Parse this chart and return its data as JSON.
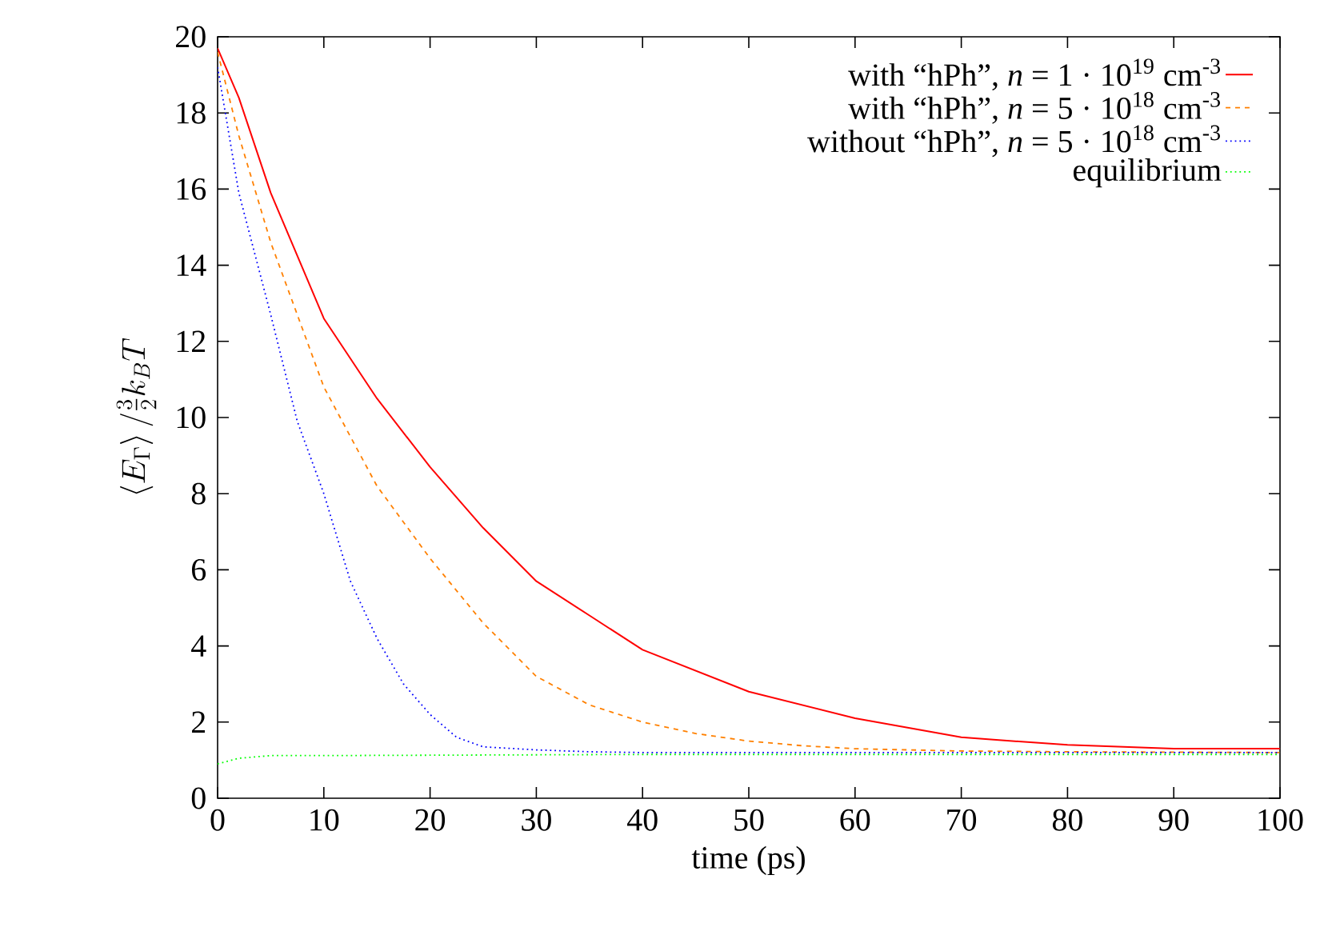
{
  "chart_data": {
    "type": "line",
    "xlabel": "time (ps)",
    "ylabel": "\\langle E_\\Gamma \\rangle\\,/\\tfrac{3}{2} k_B T",
    "xlim": [
      0,
      100
    ],
    "ylim": [
      0,
      20
    ],
    "xticks": [
      0,
      10,
      20,
      30,
      40,
      50,
      60,
      70,
      80,
      90,
      100
    ],
    "yticks": [
      0,
      2,
      4,
      6,
      8,
      10,
      12,
      14,
      16,
      18,
      20
    ],
    "grid": false,
    "legend": "top right",
    "series": [
      {
        "name": "with “hPh”, *n* = 1 · 10$^{19}$ cm$^{-3}$",
        "color": "#ff0000",
        "line_style": "solid",
        "x": [
          0,
          2,
          5,
          10,
          15,
          20,
          25,
          30,
          35,
          40,
          50,
          60,
          70,
          80,
          90,
          100
        ],
        "values": [
          19.7,
          18.4,
          15.9,
          12.6,
          10.5,
          8.7,
          7.1,
          5.7,
          4.8,
          3.9,
          2.8,
          2.1,
          1.6,
          1.4,
          1.3,
          1.3
        ]
      },
      {
        "name": "with “hPh”, *n* = 5 · 10$^{18}$ cm$^{-3}$",
        "color": "#ff8000",
        "line_style": "dashed",
        "x": [
          0,
          2,
          5,
          10,
          15,
          20,
          25,
          30,
          35,
          40,
          45,
          50,
          55,
          60,
          70,
          80,
          100
        ],
        "values": [
          19.6,
          17.4,
          14.6,
          10.8,
          8.2,
          6.3,
          4.6,
          3.2,
          2.45,
          2.0,
          1.7,
          1.5,
          1.38,
          1.3,
          1.24,
          1.22,
          1.2
        ]
      },
      {
        "name": "without “hPh”, *n* = 5 · 10$^{18}$ cm$^{-3}$",
        "color": "#0000ff",
        "line_style": "dotted",
        "x": [
          0,
          2,
          5,
          7.5,
          10,
          12.5,
          15,
          17.5,
          20,
          22.5,
          25,
          30,
          35,
          40,
          60,
          100
        ],
        "values": [
          19.2,
          15.9,
          12.7,
          9.9,
          8.0,
          5.7,
          4.2,
          3.0,
          2.2,
          1.6,
          1.35,
          1.27,
          1.22,
          1.2,
          1.2,
          1.2
        ]
      },
      {
        "name": "equilibrium",
        "color": "#00ff00",
        "line_style": "dotted",
        "x": [
          0,
          2,
          5,
          10,
          20,
          40,
          60,
          80,
          100
        ],
        "values": [
          0.9,
          1.05,
          1.12,
          1.12,
          1.13,
          1.15,
          1.15,
          1.15,
          1.15
        ]
      }
    ]
  }
}
